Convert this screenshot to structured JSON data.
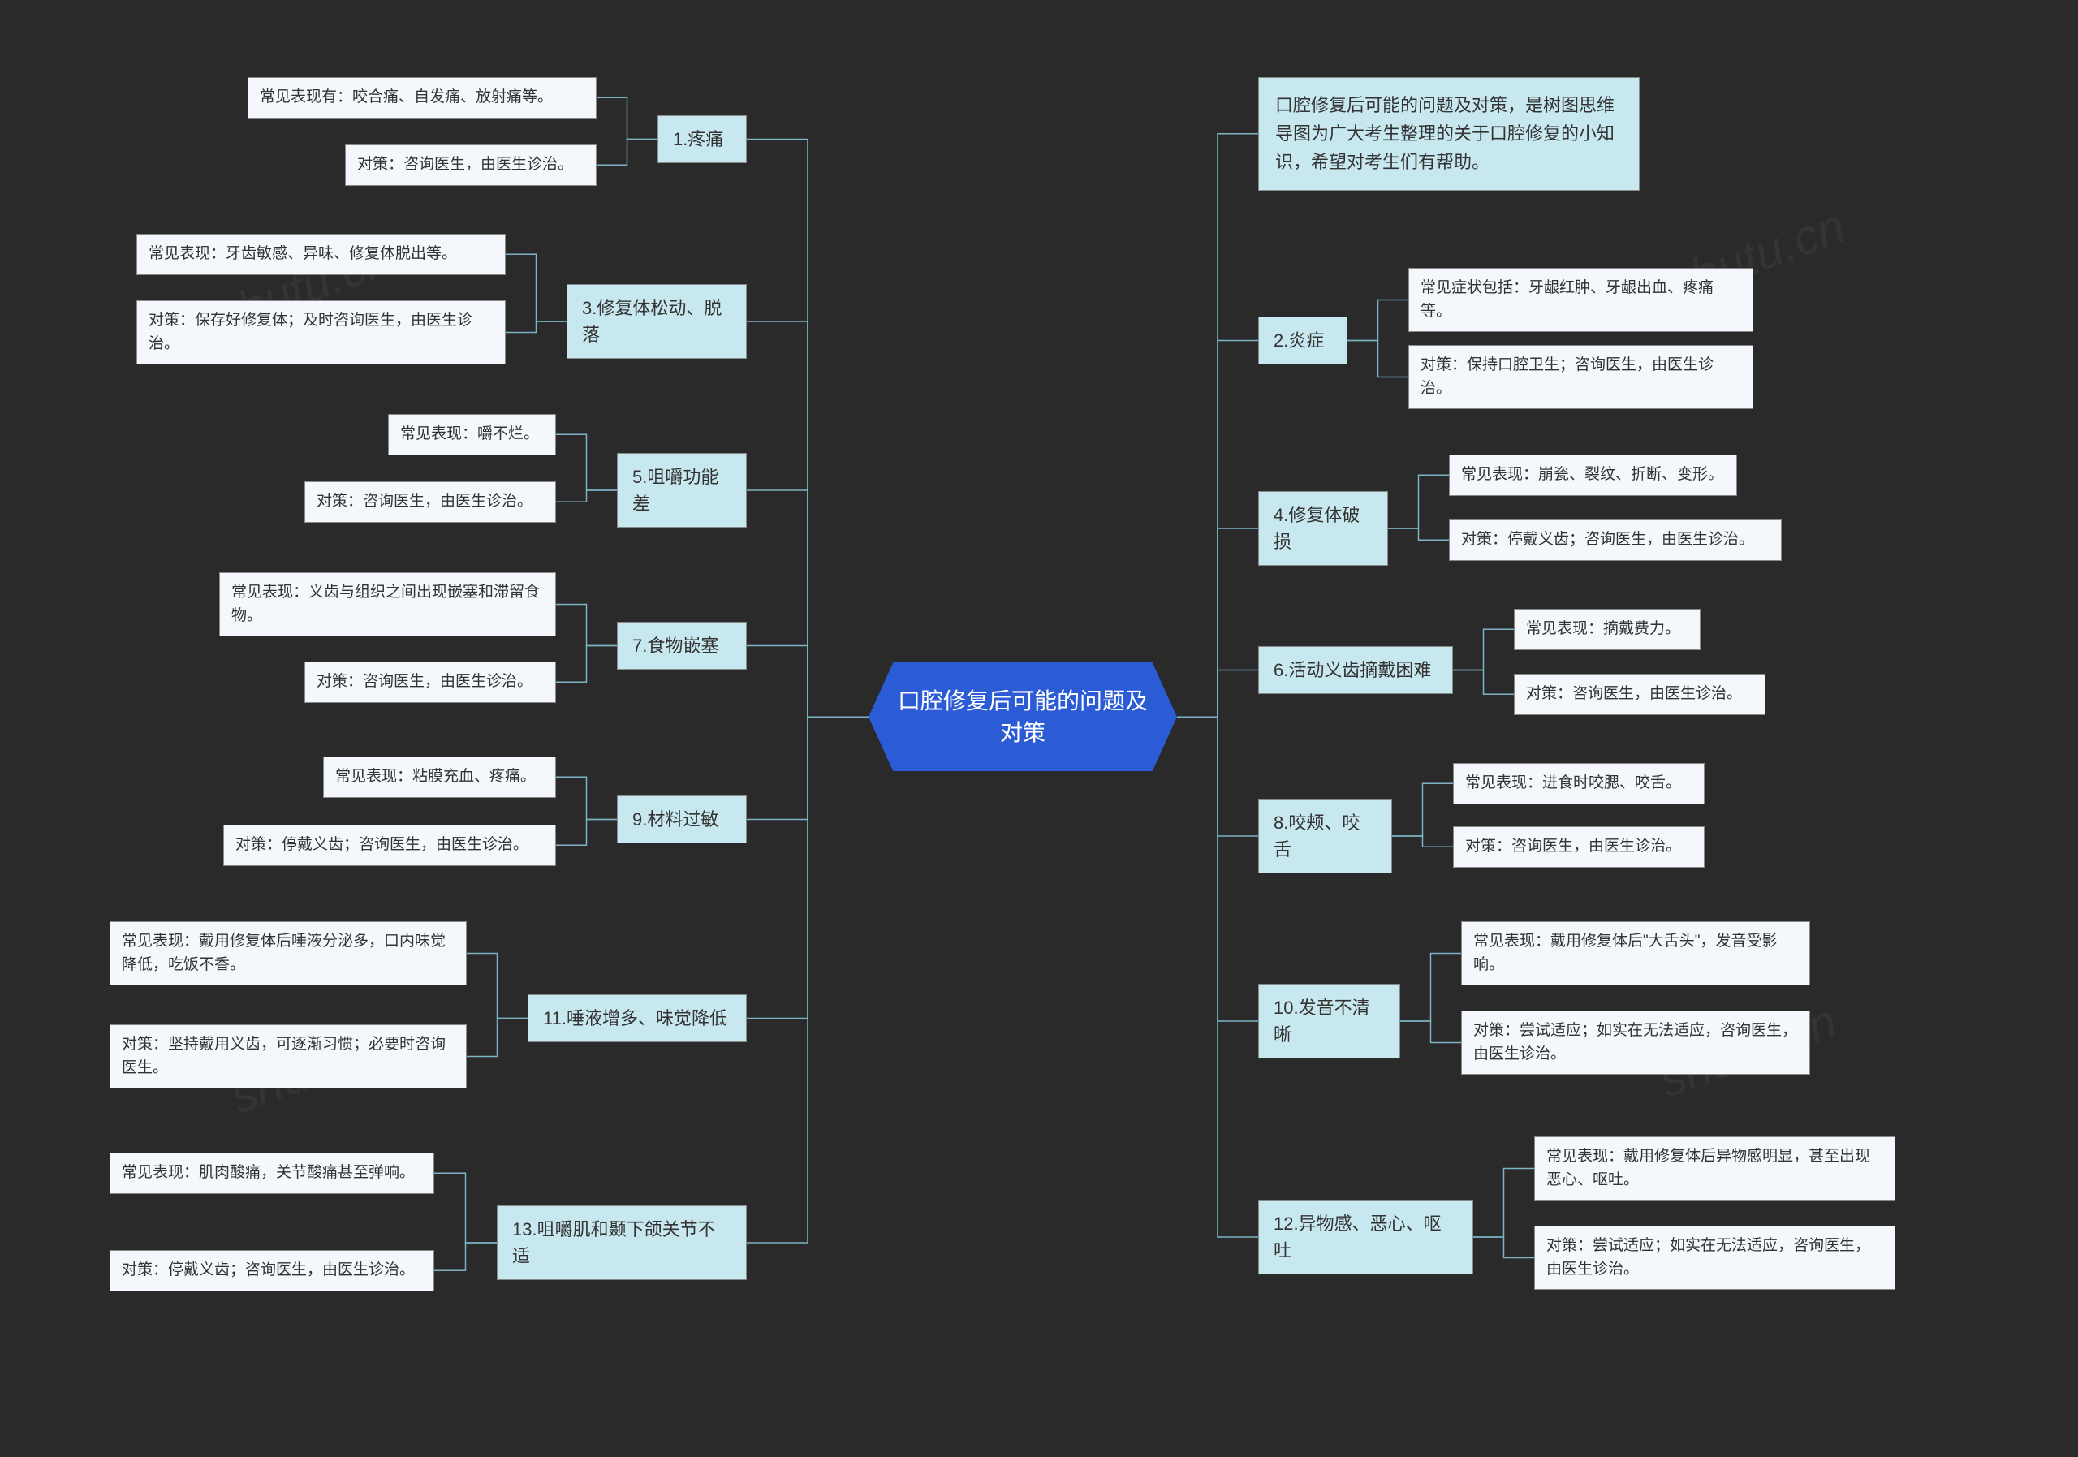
{
  "type": "mindmap",
  "background_color": "#2a2a2a",
  "center_color": "#2c5bd6",
  "branch_color": "#c8e8f0",
  "leaf_color": "#f4f8fc",
  "connector_color": "#7db4c5",
  "center": {
    "text": "口腔修复后可能的问题及\n对策"
  },
  "intro": "口腔修复后可能的问题及对策，是树图思维导图为广大考生整理的关于口腔修复的小知识，希望对考生们有帮助。",
  "left": [
    {
      "label": "1.疼痛",
      "children": [
        "常见表现有：咬合痛、自发痛、放射痛等。",
        "对策：咨询医生，由医生诊治。"
      ]
    },
    {
      "label": "3.修复体松动、脱落",
      "children": [
        "常见表现：牙齿敏感、异味、修复体脱出等。",
        "对策：保存好修复体；及时咨询医生，由医生诊治。"
      ]
    },
    {
      "label": "5.咀嚼功能差",
      "children": [
        "常见表现：嚼不烂。",
        "对策：咨询医生，由医生诊治。"
      ]
    },
    {
      "label": "7.食物嵌塞",
      "children": [
        "常见表现：义齿与组织之间出现嵌塞和滞留食物。",
        "对策：咨询医生，由医生诊治。"
      ]
    },
    {
      "label": "9.材料过敏",
      "children": [
        "常见表现：粘膜充血、疼痛。",
        "对策：停戴义齿；咨询医生，由医生诊治。"
      ]
    },
    {
      "label": "11.唾液增多、味觉降低",
      "children": [
        "常见表现：戴用修复体后唾液分泌多，口内味觉降低，吃饭不香。",
        "对策：坚持戴用义齿，可逐渐习惯；必要时咨询医生。"
      ]
    },
    {
      "label": "13.咀嚼肌和颞下颌关节不适",
      "children": [
        "常见表现：肌肉酸痛，关节酸痛甚至弹响。",
        "对策：停戴义齿；咨询医生，由医生诊治。"
      ]
    }
  ],
  "right_intro_first": true,
  "right": [
    {
      "label": "2.炎症",
      "children": [
        "常见症状包括：牙龈红肿、牙龈出血、疼痛等。",
        "对策：保持口腔卫生；咨询医生，由医生诊治。"
      ]
    },
    {
      "label": "4.修复体破损",
      "children": [
        "常见表现：崩瓷、裂纹、折断、变形。",
        "对策：停戴义齿；咨询医生，由医生诊治。"
      ]
    },
    {
      "label": "6.活动义齿摘戴困难",
      "children": [
        "常见表现：摘戴费力。",
        "对策：咨询医生，由医生诊治。"
      ]
    },
    {
      "label": "8.咬颊、咬舌",
      "children": [
        "常见表现：进食时咬腮、咬舌。",
        "对策：咨询医生，由医生诊治。"
      ]
    },
    {
      "label": "10.发音不清晰",
      "children": [
        "常见表现：戴用修复体后\"大舌头\"，发音受影响。",
        "对策：尝试适应；如实在无法适应，咨询医生，由医生诊治。"
      ]
    },
    {
      "label": "12.异物感、恶心、呕吐",
      "children": [
        "常见表现：戴用修复体后异物感明显，甚至出现恶心、呕吐。",
        "对策：尝试适应；如实在无法适应，咨询医生，由医生诊治。"
      ]
    }
  ],
  "watermark": "shutu.cn"
}
